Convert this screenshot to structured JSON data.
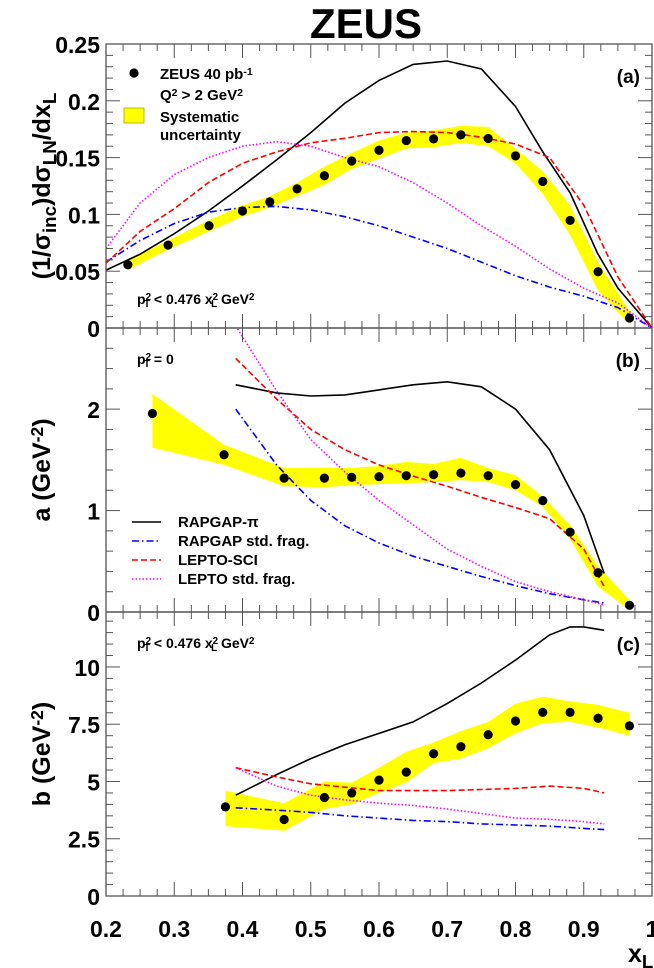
{
  "chart_data": {
    "type": "scatter",
    "title": "ZEUS",
    "xlabel": {
      "segments": [
        {
          "t": "x"
        },
        {
          "t": "L",
          "s": "sub"
        }
      ]
    },
    "xlim": [
      0.2,
      1.0
    ],
    "x_ticks": [
      "0.2",
      "0.3",
      "0.4",
      "0.5",
      "0.6",
      "0.7",
      "0.8",
      "0.9",
      "1"
    ],
    "colors": {
      "data": "#000000",
      "band": "#ffff00",
      "RAPGAP-pi": "#000000",
      "RAPGAP std. frag.": "#0000ff",
      "LEPTO-SCI": "#ff0000",
      "LEPTO std. frag.": "#ff00ff"
    },
    "panels": [
      {
        "tag": "(a)",
        "ylabel": {
          "segments": [
            {
              "t": "(1/σ"
            },
            {
              "t": "inc",
              "s": "sub"
            },
            {
              "t": ")dσ"
            },
            {
              "t": "LN",
              "s": "sub"
            },
            {
              "t": "/dx"
            },
            {
              "t": "L",
              "s": "sub"
            }
          ]
        },
        "ylim": [
          0,
          0.25
        ],
        "y_ticks": [
          {
            "v": 0,
            "label": "0"
          },
          {
            "v": 0.05,
            "label": "0.05"
          },
          {
            "v": 0.1,
            "label": "0.1"
          },
          {
            "v": 0.15,
            "label": "0.15"
          },
          {
            "v": 0.2,
            "label": "0.2"
          },
          {
            "v": 0.25,
            "label": "0.25"
          }
        ],
        "annotation": {
          "segments": [
            {
              "t": "p"
            },
            {
              "t": "T",
              "s": "subsup",
              "sup": "2"
            },
            {
              "t": " < 0.476 x"
            },
            {
              "t": "L",
              "s": "subsup",
              "sup": "2"
            },
            {
              "t": " GeV"
            },
            {
              "t": "2",
              "s": "sup"
            }
          ]
        },
        "legend": {
          "data_line1": {
            "segments": [
              {
                "t": "ZEUS 40 pb"
              },
              {
                "t": "-1",
                "s": "sup"
              }
            ]
          },
          "data_line2": {
            "segments": [
              {
                "t": "Q"
              },
              {
                "t": "2",
                "s": "sup"
              },
              {
                "t": " > 2 GeV"
              },
              {
                "t": "2",
                "s": "sup"
              }
            ]
          },
          "band_line1": "Systematic",
          "band_line2": "uncertainty"
        },
        "data": {
          "x": [
            0.232,
            0.291,
            0.351,
            0.4,
            0.44,
            0.48,
            0.52,
            0.56,
            0.6,
            0.64,
            0.68,
            0.72,
            0.76,
            0.8,
            0.84,
            0.88,
            0.921,
            0.967
          ],
          "y": [
            0.0557,
            0.073,
            0.09,
            0.103,
            0.111,
            0.1225,
            0.134,
            0.147,
            0.1565,
            0.165,
            0.1665,
            0.17,
            0.1668,
            0.1515,
            0.129,
            0.0947,
            0.0495,
            0.0088
          ],
          "sys_lo": [
            0.051,
            0.069,
            0.085,
            0.098,
            0.106,
            0.116,
            0.126,
            0.14,
            0.149,
            0.158,
            0.159,
            0.163,
            0.16,
            0.145,
            0.118,
            0.082,
            0.033,
            0.003
          ],
          "sys_hi": [
            0.06,
            0.077,
            0.095,
            0.108,
            0.116,
            0.128,
            0.142,
            0.154,
            0.165,
            0.172,
            0.174,
            0.178,
            0.177,
            0.158,
            0.138,
            0.108,
            0.058,
            0.015
          ]
        },
        "curves": [
          {
            "name": "RAPGAP-pi",
            "x": [
              0.2,
              0.25,
              0.3,
              0.35,
              0.4,
              0.45,
              0.5,
              0.55,
              0.6,
              0.65,
              0.7,
              0.75,
              0.8,
              0.84,
              0.88,
              0.92,
              0.95,
              1.0
            ],
            "y": [
              0.051,
              0.065,
              0.083,
              0.103,
              0.125,
              0.148,
              0.172,
              0.198,
              0.218,
              0.232,
              0.235,
              0.228,
              0.195,
              0.155,
              0.119,
              0.066,
              0.035,
              0.0
            ]
          },
          {
            "name": "RAPGAP std. frag.",
            "x": [
              0.2,
              0.25,
              0.3,
              0.35,
              0.4,
              0.45,
              0.5,
              0.55,
              0.6,
              0.65,
              0.7,
              0.75,
              0.8,
              0.85,
              0.9,
              0.95,
              1.0
            ],
            "y": [
              0.058,
              0.077,
              0.092,
              0.102,
              0.106,
              0.107,
              0.104,
              0.098,
              0.09,
              0.08,
              0.07,
              0.058,
              0.046,
              0.036,
              0.028,
              0.018,
              0.0
            ]
          },
          {
            "name": "LEPTO-SCI",
            "x": [
              0.2,
              0.25,
              0.3,
              0.35,
              0.4,
              0.45,
              0.5,
              0.55,
              0.6,
              0.65,
              0.7,
              0.75,
              0.8,
              0.85,
              0.9,
              0.95,
              1.0
            ],
            "y": [
              0.057,
              0.085,
              0.105,
              0.128,
              0.145,
              0.155,
              0.163,
              0.167,
              0.172,
              0.173,
              0.172,
              0.168,
              0.162,
              0.15,
              0.108,
              0.045,
              0.0
            ]
          },
          {
            "name": "LEPTO std. frag.",
            "x": [
              0.2,
              0.25,
              0.3,
              0.35,
              0.4,
              0.45,
              0.5,
              0.55,
              0.6,
              0.65,
              0.7,
              0.75,
              0.8,
              0.85,
              0.9,
              0.95,
              1.0
            ],
            "y": [
              0.07,
              0.11,
              0.135,
              0.15,
              0.16,
              0.164,
              0.16,
              0.15,
              0.142,
              0.128,
              0.11,
              0.09,
              0.072,
              0.052,
              0.035,
              0.022,
              0.0
            ]
          }
        ]
      },
      {
        "tag": "(b)",
        "ylabel": {
          "segments": [
            {
              "t": "a (GeV"
            },
            {
              "t": "-2",
              "s": "sup"
            },
            {
              "t": ")"
            }
          ]
        },
        "ylim": [
          0,
          2.8
        ],
        "y_ticks": [
          {
            "v": 0,
            "label": "0"
          },
          {
            "v": 1,
            "label": "1"
          },
          {
            "v": 2,
            "label": "2"
          }
        ],
        "annotation": {
          "segments": [
            {
              "t": "p"
            },
            {
              "t": "T",
              "s": "subsup",
              "sup": "2"
            },
            {
              "t": " = 0"
            }
          ]
        },
        "model_legend": [
          {
            "curve": "RAPGAP-pi",
            "label": "RAPGAP-π"
          },
          {
            "curve": "RAPGAP std. frag.",
            "label": "RAPGAP std. frag."
          },
          {
            "curve": "LEPTO-SCI",
            "label": "LEPTO-SCI"
          },
          {
            "curve": "LEPTO std. frag.",
            "label": "LEPTO std. frag."
          }
        ],
        "data": {
          "x": [
            0.268,
            0.373,
            0.461,
            0.52,
            0.56,
            0.6,
            0.64,
            0.68,
            0.72,
            0.76,
            0.8,
            0.84,
            0.88,
            0.921,
            0.967
          ],
          "y": [
            1.957,
            1.55,
            1.32,
            1.32,
            1.328,
            1.334,
            1.344,
            1.354,
            1.37,
            1.344,
            1.256,
            1.098,
            0.787,
            0.387,
            0.066
          ],
          "sys_lo": [
            1.62,
            1.45,
            1.24,
            1.23,
            1.25,
            1.26,
            1.27,
            1.28,
            1.3,
            1.28,
            1.2,
            1.04,
            0.72,
            0.25,
            0.02
          ],
          "sys_hi": [
            2.15,
            1.65,
            1.42,
            1.42,
            1.42,
            1.44,
            1.48,
            1.46,
            1.52,
            1.42,
            1.35,
            1.14,
            0.86,
            0.45,
            0.12
          ]
        },
        "curves": [
          {
            "name": "RAPGAP-pi",
            "x": [
              0.39,
              0.45,
              0.5,
              0.55,
              0.6,
              0.65,
              0.7,
              0.75,
              0.8,
              0.85,
              0.9,
              0.93
            ],
            "y": [
              2.24,
              2.16,
              2.13,
              2.14,
              2.19,
              2.24,
              2.27,
              2.22,
              2.0,
              1.6,
              0.95,
              0.38
            ]
          },
          {
            "name": "RAPGAP std. frag.",
            "x": [
              0.39,
              0.45,
              0.5,
              0.55,
              0.6,
              0.65,
              0.7,
              0.75,
              0.8,
              0.85,
              0.9,
              0.93
            ],
            "y": [
              2.0,
              1.45,
              1.1,
              0.85,
              0.68,
              0.55,
              0.45,
              0.35,
              0.26,
              0.18,
              0.12,
              0.09
            ]
          },
          {
            "name": "LEPTO-SCI",
            "x": [
              0.39,
              0.45,
              0.5,
              0.55,
              0.6,
              0.65,
              0.7,
              0.75,
              0.8,
              0.85,
              0.9,
              0.93
            ],
            "y": [
              2.5,
              2.1,
              1.8,
              1.6,
              1.45,
              1.34,
              1.24,
              1.13,
              1.03,
              0.92,
              0.62,
              0.25
            ]
          },
          {
            "name": "LEPTO std. frag.",
            "x": [
              0.39,
              0.45,
              0.5,
              0.55,
              0.6,
              0.65,
              0.7,
              0.75,
              0.8,
              0.85,
              0.9,
              0.93
            ],
            "y": [
              2.82,
              2.18,
              1.7,
              1.38,
              1.1,
              0.86,
              0.62,
              0.45,
              0.3,
              0.2,
              0.12,
              0.07
            ]
          }
        ]
      },
      {
        "tag": "(c)",
        "ylabel": {
          "segments": [
            {
              "t": "b (GeV"
            },
            {
              "t": "-2",
              "s": "sup"
            },
            {
              "t": ")"
            }
          ]
        },
        "ylim": [
          0,
          12.4
        ],
        "y_ticks": [
          {
            "v": 0,
            "label": "0"
          },
          {
            "v": 2.5,
            "label": "2.5"
          },
          {
            "v": 5,
            "label": "5"
          },
          {
            "v": 7.5,
            "label": "7.5"
          },
          {
            "v": 10,
            "label": "10"
          }
        ],
        "annotation": {
          "segments": [
            {
              "t": "p"
            },
            {
              "t": "T",
              "s": "subsup",
              "sup": "2"
            },
            {
              "t": " < 0.476 x"
            },
            {
              "t": "L",
              "s": "subsup",
              "sup": "2"
            },
            {
              "t": " GeV"
            },
            {
              "t": "2",
              "s": "sup"
            }
          ]
        },
        "data": {
          "x": [
            0.375,
            0.461,
            0.52,
            0.56,
            0.6,
            0.64,
            0.68,
            0.72,
            0.76,
            0.8,
            0.84,
            0.88,
            0.921,
            0.967
          ],
          "y": [
            3.89,
            3.34,
            4.3,
            4.5,
            5.06,
            5.41,
            6.21,
            6.52,
            7.04,
            7.64,
            8.02,
            8.02,
            7.76,
            7.43
          ],
          "sys_lo": [
            3.05,
            2.85,
            3.8,
            4.0,
            4.5,
            4.95,
            5.8,
            6.0,
            6.45,
            7.1,
            7.55,
            7.6,
            7.35,
            7.0
          ],
          "sys_hi": [
            4.6,
            4.05,
            5.0,
            4.95,
            5.6,
            6.3,
            6.7,
            7.2,
            7.6,
            8.4,
            8.7,
            8.5,
            8.35,
            8.0
          ]
        },
        "curves": [
          {
            "name": "RAPGAP-pi",
            "x": [
              0.39,
              0.45,
              0.5,
              0.55,
              0.6,
              0.65,
              0.7,
              0.75,
              0.8,
              0.85,
              0.88,
              0.9,
              0.93
            ],
            "y": [
              4.4,
              5.3,
              6.0,
              6.6,
              7.1,
              7.6,
              8.4,
              9.3,
              10.3,
              11.4,
              11.75,
              11.75,
              11.6
            ]
          },
          {
            "name": "RAPGAP std. frag.",
            "x": [
              0.39,
              0.45,
              0.5,
              0.55,
              0.6,
              0.65,
              0.7,
              0.75,
              0.8,
              0.85,
              0.9,
              0.93
            ],
            "y": [
              3.85,
              3.75,
              3.65,
              3.5,
              3.4,
              3.3,
              3.25,
              3.15,
              3.1,
              3.05,
              2.95,
              2.9
            ]
          },
          {
            "name": "LEPTO-SCI",
            "x": [
              0.39,
              0.45,
              0.5,
              0.55,
              0.6,
              0.65,
              0.7,
              0.75,
              0.8,
              0.85,
              0.9,
              0.93
            ],
            "y": [
              5.6,
              5.2,
              4.9,
              4.75,
              4.6,
              4.6,
              4.6,
              4.65,
              4.7,
              4.8,
              4.7,
              4.5
            ]
          },
          {
            "name": "LEPTO std. frag.",
            "x": [
              0.39,
              0.45,
              0.5,
              0.55,
              0.6,
              0.65,
              0.7,
              0.75,
              0.8,
              0.85,
              0.9,
              0.93
            ],
            "y": [
              5.6,
              4.8,
              4.4,
              4.2,
              4.05,
              3.95,
              3.8,
              3.6,
              3.4,
              3.35,
              3.25,
              3.15
            ]
          }
        ]
      }
    ]
  }
}
